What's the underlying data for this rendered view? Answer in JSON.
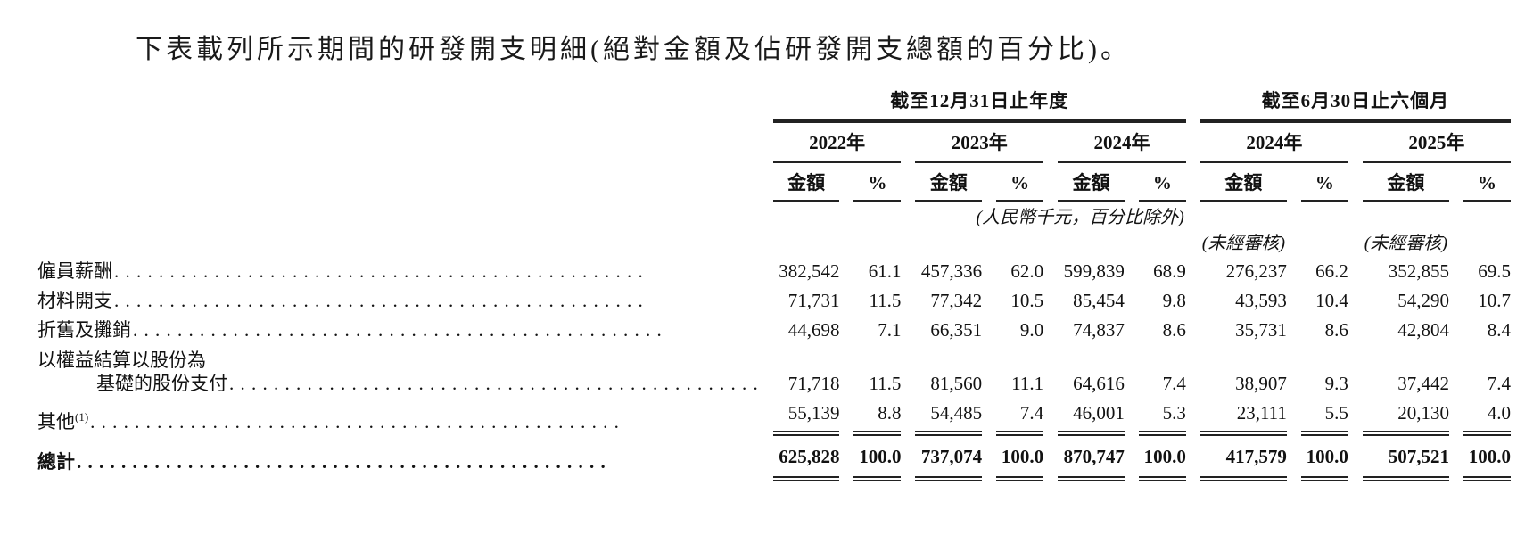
{
  "title": "下表載列所示期間的研發開支明細(絕對金額及佔研發開支總額的百分比)。",
  "table": {
    "col_groups": [
      {
        "label": "截至12月31日止年度",
        "years": [
          "2022年",
          "2023年",
          "2024年"
        ]
      },
      {
        "label": "截至6月30日止六個月",
        "years": [
          "2024年",
          "2025年"
        ]
      }
    ],
    "sub_headers": {
      "amount": "金額",
      "percent": "%"
    },
    "unit_note": "(人民幣千元，百分比除外)",
    "unaudited_note": "(未經審核)",
    "rows": [
      {
        "label": "僱員薪酬",
        "values": [
          "382,542",
          "61.1",
          "457,336",
          "62.0",
          "599,839",
          "68.9",
          "276,237",
          "66.2",
          "352,855",
          "69.5"
        ]
      },
      {
        "label": "材料開支",
        "values": [
          "71,731",
          "11.5",
          "77,342",
          "10.5",
          "85,454",
          "9.8",
          "43,593",
          "10.4",
          "54,290",
          "10.7"
        ]
      },
      {
        "label": "折舊及攤銷",
        "values": [
          "44,698",
          "7.1",
          "66,351",
          "9.0",
          "74,837",
          "8.6",
          "35,731",
          "8.6",
          "42,804",
          "8.4"
        ]
      },
      {
        "label_line1": "以權益結算以股份為",
        "label_line2": "基礎的股份支付",
        "values": [
          "71,718",
          "11.5",
          "81,560",
          "11.1",
          "64,616",
          "7.4",
          "38,907",
          "9.3",
          "37,442",
          "7.4"
        ]
      },
      {
        "label": "其他",
        "note_ref": "(1)",
        "values": [
          "55,139",
          "8.8",
          "54,485",
          "7.4",
          "46,001",
          "5.3",
          "23,111",
          "5.5",
          "20,130",
          "4.0"
        ]
      }
    ],
    "total_row": {
      "label": "總計",
      "values": [
        "625,828",
        "100.0",
        "737,074",
        "100.0",
        "870,747",
        "100.0",
        "417,579",
        "100.0",
        "507,521",
        "100.0"
      ]
    }
  }
}
